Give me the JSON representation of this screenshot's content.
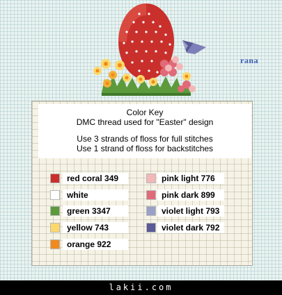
{
  "signature": "rana",
  "key": {
    "title": "Color Key",
    "subtitle": "DMC thread used for \"Easter\" design",
    "note_full": "Use 3 strands of floss for full stitches",
    "note_back": "Use 1 strand of floss for backstitches"
  },
  "colors_left": [
    {
      "label": "red coral 349",
      "color": "#c9302c"
    },
    {
      "label": "white",
      "color": "#ffffff"
    },
    {
      "label": "green 3347",
      "color": "#5c9a3c"
    },
    {
      "label": "yellow 743",
      "color": "#fcd86a"
    },
    {
      "label": "orange 922",
      "color": "#f08a1c"
    }
  ],
  "colors_right": [
    {
      "label": "pink light 776",
      "color": "#f3b7b7"
    },
    {
      "label": "pink dark 899",
      "color": "#e06a78"
    },
    {
      "label": "violet light 793",
      "color": "#9aa0c8"
    },
    {
      "label": "violet dark 792",
      "color": "#5a5a96"
    }
  ],
  "footer": "lakii.com"
}
